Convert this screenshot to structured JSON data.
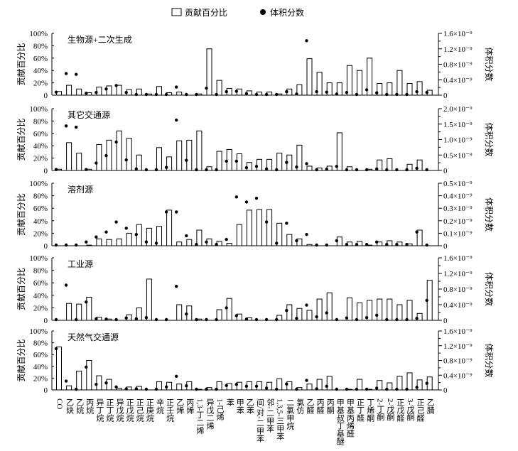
{
  "chart_data": {
    "type": "bar",
    "legend": {
      "bar_label": "贡献百分比",
      "dot_label": "体积分数",
      "placement": "top"
    },
    "categories": [
      "CO",
      "乙炔",
      "乙烷",
      "丙烷",
      "异丁烷",
      "正丁烷",
      "异戊烷",
      "正戊烷",
      "正己烷",
      "正庚烷",
      "辛烷",
      "正壬烷",
      "乙烯",
      "丙烯",
      "1,3-丁二烯",
      "异戊二烯",
      "1-己烯",
      "苯",
      "甲苯",
      "乙苯",
      "间/对-二甲苯",
      "邻-二甲苯",
      "1,3,5-三甲苯",
      "二氯甲烷",
      "氯仿",
      "乙醛",
      "丙醛",
      "丙酮",
      "甲基叔丁基醚",
      "甲基丙烯醛",
      "正丁醛",
      "丁烯酮",
      "2-丁酮",
      "2-戊酮",
      "正戊醛",
      "3-戊酮",
      "正己醛",
      "乙腈"
    ],
    "ylabel_left": "贡献百分比",
    "ylabel_right": "体积分数",
    "right_unit": "×10⁻⁹",
    "panels": [
      {
        "title": "生物源+二次生成",
        "left_ticks": [
          "0",
          "20%",
          "40%",
          "60%",
          "80%",
          "100%"
        ],
        "right_ticks": [
          "0",
          "0.4×10⁻⁹",
          "0.8×10⁻⁹",
          "1.2×10⁻⁹",
          "1.6×10⁻⁹"
        ],
        "ylim_left": [
          0,
          100
        ],
        "ylim_right": [
          0,
          1.6
        ],
        "bar_values": [
          6,
          16,
          10,
          4,
          13,
          15,
          16,
          9,
          10,
          2,
          14,
          4,
          5,
          0,
          2,
          75,
          24,
          11,
          10,
          7,
          5,
          5,
          2,
          10,
          17,
          59,
          37,
          20,
          20,
          48,
          40,
          60,
          19,
          20,
          40,
          19,
          22,
          8
        ],
        "dot_values": [
          0.08,
          0.56,
          0.54,
          0.05,
          0.07,
          0.16,
          0.25,
          0.07,
          0.01,
          0,
          0.01,
          0,
          0.21,
          0,
          0,
          0.18,
          0.01,
          0.09,
          0.1,
          0.04,
          0.01,
          0,
          0,
          0.09,
          0.03,
          1.41,
          0.09,
          0.08,
          0.03,
          0.07,
          0.01,
          0.14,
          0.06,
          0,
          0.02,
          0,
          0.09,
          0.07
        ]
      },
      {
        "title": "其它交通源",
        "left_ticks": [
          "0",
          "20%",
          "40%",
          "60%",
          "80%",
          "100%"
        ],
        "right_ticks": [
          "0",
          "0.5×10⁻⁹",
          "1.0×10⁻⁹",
          "1.5×10⁻⁹",
          "2.0×10⁻⁹"
        ],
        "ylim_left": [
          0,
          100
        ],
        "ylim_right": [
          0,
          2.0
        ],
        "bar_values": [
          2,
          45,
          28,
          2,
          42,
          49,
          64,
          52,
          25,
          0,
          37,
          22,
          48,
          49,
          64,
          6,
          31,
          34,
          27,
          13,
          18,
          18,
          28,
          25,
          41,
          7,
          4,
          7,
          61,
          6,
          0,
          2,
          17,
          19,
          0,
          10,
          17,
          0
        ],
        "dot_values": [
          0.03,
          1.44,
          1.4,
          0.03,
          0.24,
          0.48,
          0.92,
          0.34,
          0.05,
          0,
          0,
          0.1,
          1.63,
          0.33,
          0,
          0,
          0,
          0.3,
          0.3,
          0.09,
          0.13,
          0.05,
          0,
          0.26,
          0.11,
          0.22,
          0.02,
          0.04,
          0.13,
          0,
          0,
          0.01,
          0.05,
          0,
          0,
          0,
          0.07,
          0.01
        ]
      },
      {
        "title": "溶剂源",
        "left_ticks": [
          "0",
          "20%",
          "40%",
          "60%",
          "80%",
          "100%"
        ],
        "right_ticks": [
          "0",
          "0.1×10⁻⁹",
          "0.2×10⁻⁹",
          "0.3×10⁻⁹",
          "0.4×10⁻⁹",
          "0.5×10⁻⁹"
        ],
        "ylim_left": [
          0,
          100
        ],
        "ylim_right": [
          0,
          0.5
        ],
        "bar_values": [
          0,
          0,
          0,
          1,
          11,
          10,
          11,
          20,
          34,
          28,
          31,
          57,
          6,
          10,
          25,
          11,
          7,
          4,
          34,
          57,
          58,
          58,
          36,
          18,
          11,
          2,
          0,
          0,
          14,
          6,
          7,
          1,
          6,
          8,
          6,
          3,
          25,
          0
        ],
        "dot_values": [
          0,
          0,
          0,
          0.03,
          0.07,
          0.11,
          0.19,
          0.14,
          0.09,
          0.03,
          0.02,
          0.27,
          0.27,
          0.08,
          0.01,
          0.03,
          0.01,
          0.05,
          0.39,
          0.35,
          0.38,
          0.19,
          0.02,
          0.18,
          0.04,
          0.09,
          0,
          0,
          0.04,
          0.01,
          0.01,
          0.01,
          0.03,
          0.01,
          0.01,
          0.01,
          0.11,
          0
        ]
      },
      {
        "title": "工业源",
        "left_ticks": [
          "0",
          "20%",
          "40%",
          "60%",
          "80%",
          "100%"
        ],
        "right_ticks": [
          "0",
          "0.4×10⁻⁹",
          "0.8×10⁻⁹",
          "1.2×10⁻⁹",
          "1.6×10⁻⁹"
        ],
        "ylim_left": [
          0,
          100
        ],
        "ylim_right": [
          0,
          1.6
        ],
        "bar_values": [
          0,
          27,
          26,
          37,
          5,
          2,
          0,
          9,
          20,
          66,
          0,
          0,
          25,
          23,
          2,
          0,
          17,
          35,
          10,
          4,
          0,
          0,
          8,
          25,
          19,
          16,
          34,
          44,
          0,
          36,
          28,
          32,
          34,
          34,
          25,
          32,
          11,
          64
        ],
        "dot_values": [
          0,
          0.9,
          0,
          0.47,
          0.04,
          0.03,
          0,
          0.06,
          0.04,
          0.07,
          0,
          0,
          0.87,
          0.16,
          0,
          0,
          0,
          0.32,
          0.12,
          0.03,
          0,
          0,
          0,
          0.25,
          0.05,
          0.39,
          0.09,
          0.19,
          0,
          0.06,
          0.01,
          0.07,
          0.13,
          0,
          0.01,
          0,
          0.05,
          0.51
        ]
      },
      {
        "title": "天然气交通源",
        "left_ticks": [
          "0",
          "20%",
          "40%",
          "60%",
          "80%",
          "100%"
        ],
        "right_ticks": [
          "0",
          "0.4×10⁻⁹",
          "0.8×10⁻⁹",
          "1.2×10⁻⁹",
          "1.6×10⁻⁹"
        ],
        "ylim_left": [
          0,
          100
        ],
        "ylim_right": [
          0,
          1.6
        ],
        "bar_values": [
          73,
          7,
          32,
          50,
          24,
          18,
          3,
          5,
          6,
          0,
          14,
          13,
          10,
          14,
          1,
          4,
          14,
          11,
          13,
          14,
          14,
          13,
          19,
          14,
          4,
          10,
          18,
          23,
          0,
          1,
          18,
          1,
          16,
          12,
          23,
          29,
          17,
          22
        ],
        "dot_values": [
          1.12,
          0.24,
          0,
          0.62,
          0.15,
          0.19,
          0.08,
          0.03,
          0.03,
          0,
          0,
          0.08,
          0.37,
          0.11,
          0,
          0,
          0,
          0.12,
          0.15,
          0.1,
          0.1,
          0.05,
          0,
          0.16,
          0,
          0.26,
          0.03,
          0.1,
          0,
          0,
          0,
          0,
          0.05,
          0,
          0,
          0,
          0.07,
          0.18
        ]
      }
    ]
  }
}
